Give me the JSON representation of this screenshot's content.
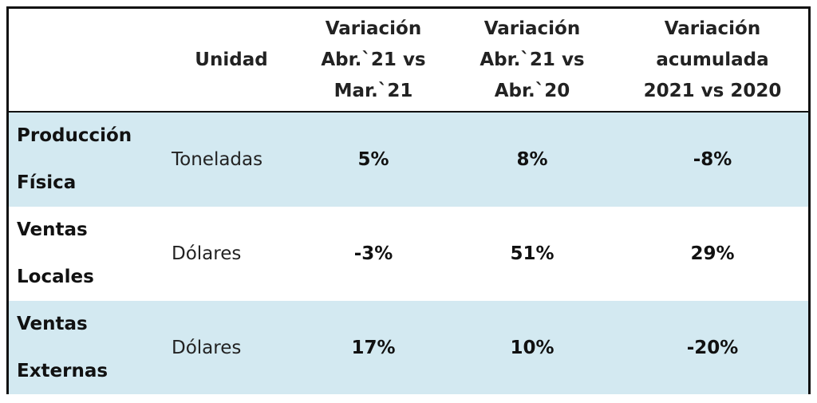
{
  "table": {
    "headers": [
      "",
      "Unidad",
      [
        "Variación",
        "Abr.`21 vs",
        "Mar.`21"
      ],
      [
        "Variación",
        "Abr.`21 vs",
        "Abr.`20"
      ],
      [
        "Variación",
        "acumulada",
        "2021 vs 2020"
      ]
    ],
    "rows": [
      {
        "label": [
          "Producción",
          "Física"
        ],
        "unit": "Toneladas",
        "values": [
          "5%",
          "8%",
          "-8%"
        ]
      },
      {
        "label": [
          "Ventas",
          "Locales"
        ],
        "unit": "Dólares",
        "values": [
          "-3%",
          "51%",
          "29%"
        ]
      },
      {
        "label": [
          "Ventas",
          "Externas"
        ],
        "unit": "Dólares",
        "values": [
          "17%",
          "10%",
          "-20%"
        ]
      }
    ]
  },
  "colors": {
    "shaded_row": "#d3e9f1",
    "plain_row": "#ffffff",
    "border": "#111111"
  }
}
